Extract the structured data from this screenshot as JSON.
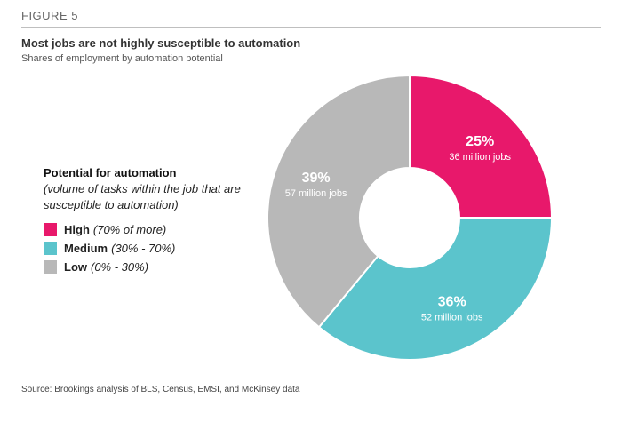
{
  "figure_label": "FIGURE 5",
  "source": "Source: Brookings analysis of BLS, Census, EMSI, and McKinsey data",
  "chart_data": {
    "type": "pie",
    "title": "Most jobs are not highly susceptible to automation",
    "subtitle": "Shares of employment by automation potential",
    "legend": {
      "title": "Potential for automation",
      "subtitle": "(volume of tasks within the job that are susceptible to automation)",
      "placement": "left"
    },
    "categories": [
      "High",
      "Medium",
      "Low"
    ],
    "values": [
      25,
      36,
      39
    ],
    "slices": [
      {
        "name": "High",
        "range": "(70% of more)",
        "value": 25,
        "value_label": "25%",
        "detail": "36 million jobs",
        "color": "#e8186b"
      },
      {
        "name": "Medium",
        "range": "(30% - 70%)",
        "value": 36,
        "value_label": "36%",
        "detail": "52 million jobs",
        "color": "#5bc4cc"
      },
      {
        "name": "Low",
        "range": "(0% - 30%)",
        "value": 39,
        "value_label": "39%",
        "detail": "57 million jobs",
        "color": "#b8b8b8"
      }
    ]
  }
}
